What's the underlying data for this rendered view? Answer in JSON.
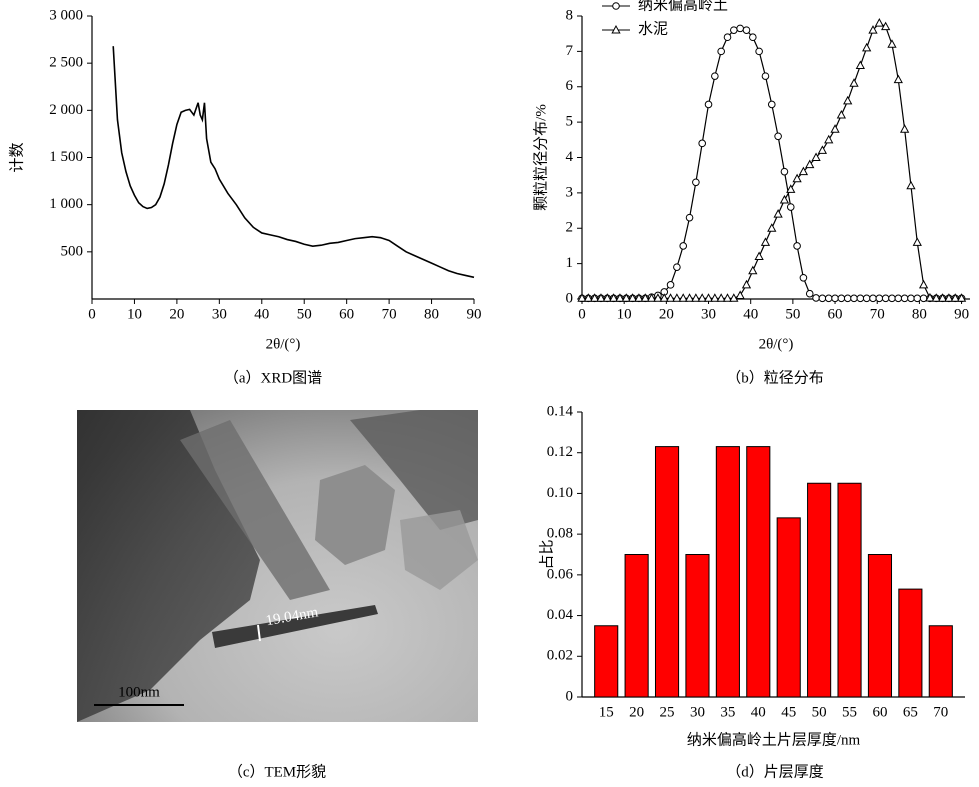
{
  "chart_data": [
    {
      "type": "line",
      "caption": "（a）XRD图谱",
      "x_label": "2θ/(°)",
      "y_label": "计数",
      "color": "#000000",
      "x": [
        5,
        6,
        7,
        8,
        9,
        10,
        11,
        12,
        13,
        14,
        15,
        16,
        17,
        18,
        19,
        20,
        21,
        22,
        23,
        24,
        25,
        25.5,
        26,
        26.5,
        27,
        28,
        29,
        30,
        32,
        34,
        36,
        38,
        40,
        42,
        44,
        46,
        48,
        50,
        52,
        54,
        56,
        58,
        60,
        62,
        64,
        66,
        68,
        70,
        72,
        74,
        76,
        78,
        80,
        82,
        84,
        86,
        88,
        90
      ],
      "values": [
        2680,
        1900,
        1550,
        1350,
        1200,
        1100,
        1020,
        980,
        960,
        970,
        1000,
        1080,
        1220,
        1420,
        1650,
        1850,
        1980,
        2000,
        2010,
        1950,
        2080,
        1950,
        1900,
        2080,
        1700,
        1450,
        1380,
        1270,
        1120,
        1000,
        860,
        760,
        700,
        680,
        660,
        630,
        610,
        580,
        560,
        570,
        590,
        600,
        620,
        640,
        650,
        660,
        650,
        620,
        560,
        500,
        460,
        420,
        380,
        340,
        300,
        270,
        250,
        230
      ],
      "xlim": [
        0,
        90
      ],
      "xticks": [
        0,
        10,
        20,
        30,
        40,
        50,
        60,
        70,
        80,
        90
      ],
      "ylim": [
        0,
        3000
      ],
      "yticks": [
        500,
        {
          "value": 1000,
          "label": "1 000"
        },
        {
          "value": 1500,
          "label": "1 500"
        },
        {
          "value": 2000,
          "label": "2 000"
        },
        {
          "value": 2500,
          "label": "2 500"
        },
        {
          "value": 3000,
          "label": "3 000"
        }
      ]
    },
    {
      "type": "line",
      "caption": "（b）粒径分布",
      "x_label": "2θ/(°)",
      "y_label": "颗粒粒径分布/%",
      "legend": "upper left",
      "x": [
        0,
        1.5,
        3,
        4.5,
        6,
        7.5,
        9,
        10.5,
        12,
        13.5,
        15,
        16.5,
        18,
        19.5,
        21,
        22.5,
        24,
        25.5,
        27,
        28.5,
        30,
        31.5,
        33,
        34.5,
        36,
        37.5,
        39,
        40.5,
        42,
        43.5,
        45,
        46.5,
        48,
        49.5,
        51,
        52.5,
        54,
        55.5,
        57,
        58.5,
        60,
        61.5,
        63,
        64.5,
        66,
        67.5,
        69,
        70.5,
        72,
        73.5,
        75,
        76.5,
        78,
        79.5,
        81,
        82.5,
        84,
        85.5,
        87,
        88.5,
        90
      ],
      "series": [
        {
          "name": "纳米偏高岭土",
          "color": "#000000",
          "marker": "circle",
          "values": [
            0.02,
            0.02,
            0.02,
            0.02,
            0.02,
            0.02,
            0.02,
            0.02,
            0.02,
            0.02,
            0.02,
            0.05,
            0.1,
            0.2,
            0.4,
            0.9,
            1.5,
            2.3,
            3.3,
            4.4,
            5.5,
            6.3,
            7.0,
            7.4,
            7.6,
            7.65,
            7.6,
            7.4,
            7.0,
            6.3,
            5.5,
            4.6,
            3.6,
            2.6,
            1.5,
            0.6,
            0.15,
            0.03,
            0.02,
            0.02,
            0.02,
            0.02,
            0.02,
            0.02,
            0.02,
            0.02,
            0.02,
            0.02,
            0.02,
            0.02,
            0.02,
            0.02,
            0.02,
            0.02,
            0.02,
            0.02,
            0.02,
            0.02,
            0.02,
            0.02,
            0.02
          ]
        },
        {
          "name": "水泥",
          "color": "#000000",
          "marker": "triangle",
          "values": [
            0.02,
            0.02,
            0.02,
            0.02,
            0.02,
            0.02,
            0.02,
            0.02,
            0.02,
            0.02,
            0.02,
            0.02,
            0.02,
            0.02,
            0.02,
            0.02,
            0.02,
            0.02,
            0.02,
            0.02,
            0.02,
            0.02,
            0.02,
            0.02,
            0.02,
            0.1,
            0.4,
            0.8,
            1.2,
            1.6,
            2.0,
            2.4,
            2.8,
            3.1,
            3.4,
            3.6,
            3.8,
            4.0,
            4.2,
            4.5,
            4.8,
            5.2,
            5.6,
            6.1,
            6.6,
            7.1,
            7.6,
            7.8,
            7.7,
            7.2,
            6.2,
            4.8,
            3.2,
            1.6,
            0.4,
            0.03,
            0.02,
            0.02,
            0.02,
            0.02,
            0.02
          ]
        }
      ],
      "xlim": [
        0,
        92
      ],
      "xticks": [
        0,
        10,
        20,
        30,
        40,
        50,
        60,
        70,
        80,
        90
      ],
      "ylim": [
        0,
        8
      ],
      "yticks": [
        0,
        1,
        2,
        3,
        4,
        5,
        6,
        7,
        8
      ]
    },
    {
      "type": "bar",
      "caption": "（d）片层厚度",
      "x_label": "纳米偏高岭土片层厚度/nm",
      "y_label": "占比",
      "color": "#ff0000",
      "categories": [
        "15",
        "20",
        "25",
        "30",
        "35",
        "40",
        "45",
        "50",
        "55",
        "60",
        "65",
        "70"
      ],
      "values": [
        0.035,
        0.07,
        0.123,
        0.07,
        0.123,
        0.123,
        0.088,
        0.105,
        0.105,
        0.07,
        0.053,
        0.035
      ],
      "ylim": [
        0,
        0.14
      ],
      "yticks": [
        0,
        0.02,
        0.04,
        0.06,
        0.08,
        {
          "value": 0.1,
          "label": "0.10"
        },
        0.12,
        0.14
      ]
    }
  ],
  "image_panel": {
    "caption": "（c）TEM形貌",
    "measurement_label": "19.04nm",
    "scale_bar_label": "100nm"
  }
}
